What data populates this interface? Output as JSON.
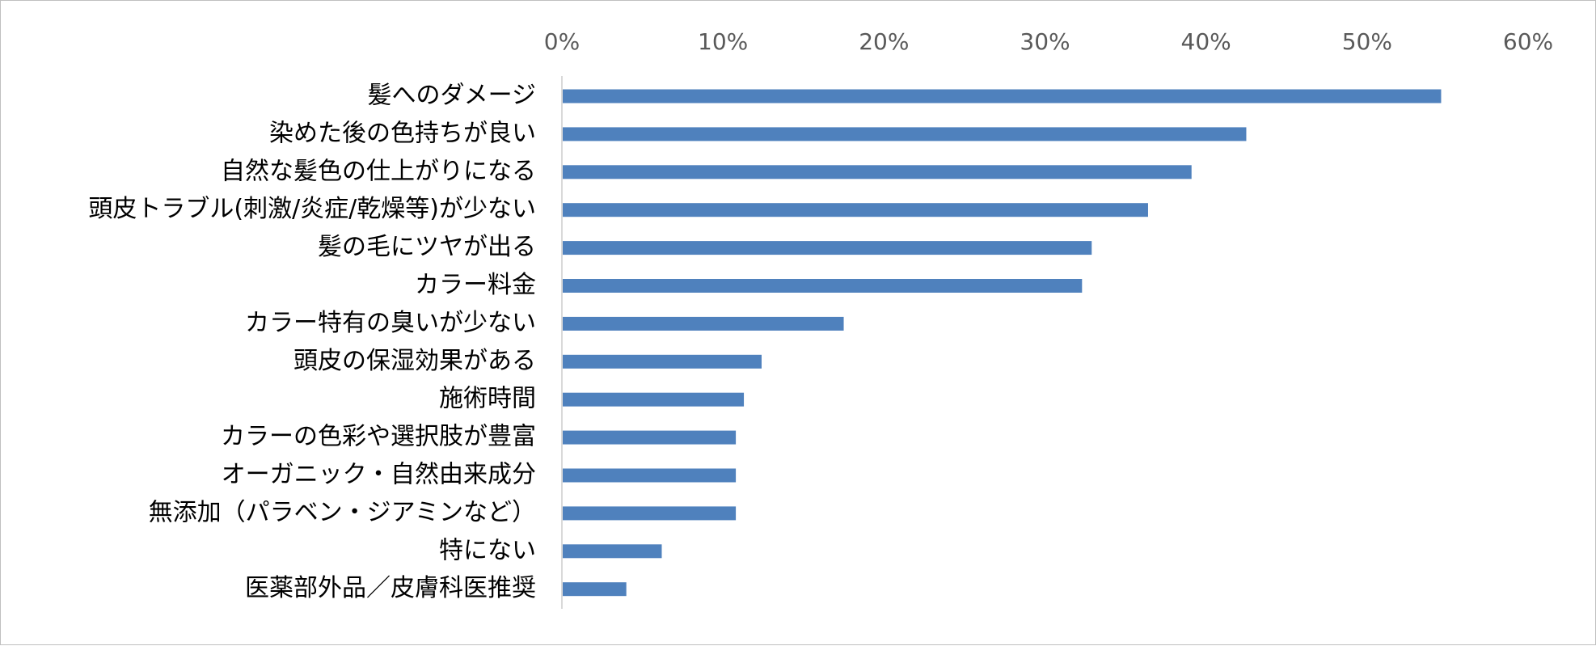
{
  "chart_data": {
    "type": "bar",
    "orientation": "horizontal",
    "title": "",
    "xlabel": "",
    "ylabel": "",
    "x_ticks": [
      "0%",
      "10%",
      "20%",
      "30%",
      "40%",
      "50%",
      "60%"
    ],
    "xlim": [
      0,
      60
    ],
    "x_axis_position": "top",
    "grid": false,
    "legend": "none",
    "bar_color": "#4f81bd",
    "categories": [
      "髪へのダメージ",
      "染めた後の色持ちが良い",
      "自然な髪色の仕上がりになる",
      "頭皮トラブル(刺激/炎症/乾燥等)が少ない",
      "髪の毛にツヤが出る",
      "カラー料金",
      "カラー特有の臭いが少ない",
      "頭皮の保湿効果がある",
      "施術時間",
      "カラーの色彩や選択肢が豊富",
      "オーガニック・自然由来成分",
      "無添加（パラベン・ジアミンなど）",
      "特にない",
      "医薬部外品／皮膚科医推奨"
    ],
    "values": [
      54.6,
      42.5,
      39.1,
      36.4,
      32.9,
      32.3,
      17.5,
      12.4,
      11.3,
      10.8,
      10.8,
      10.8,
      6.2,
      4.0
    ]
  }
}
